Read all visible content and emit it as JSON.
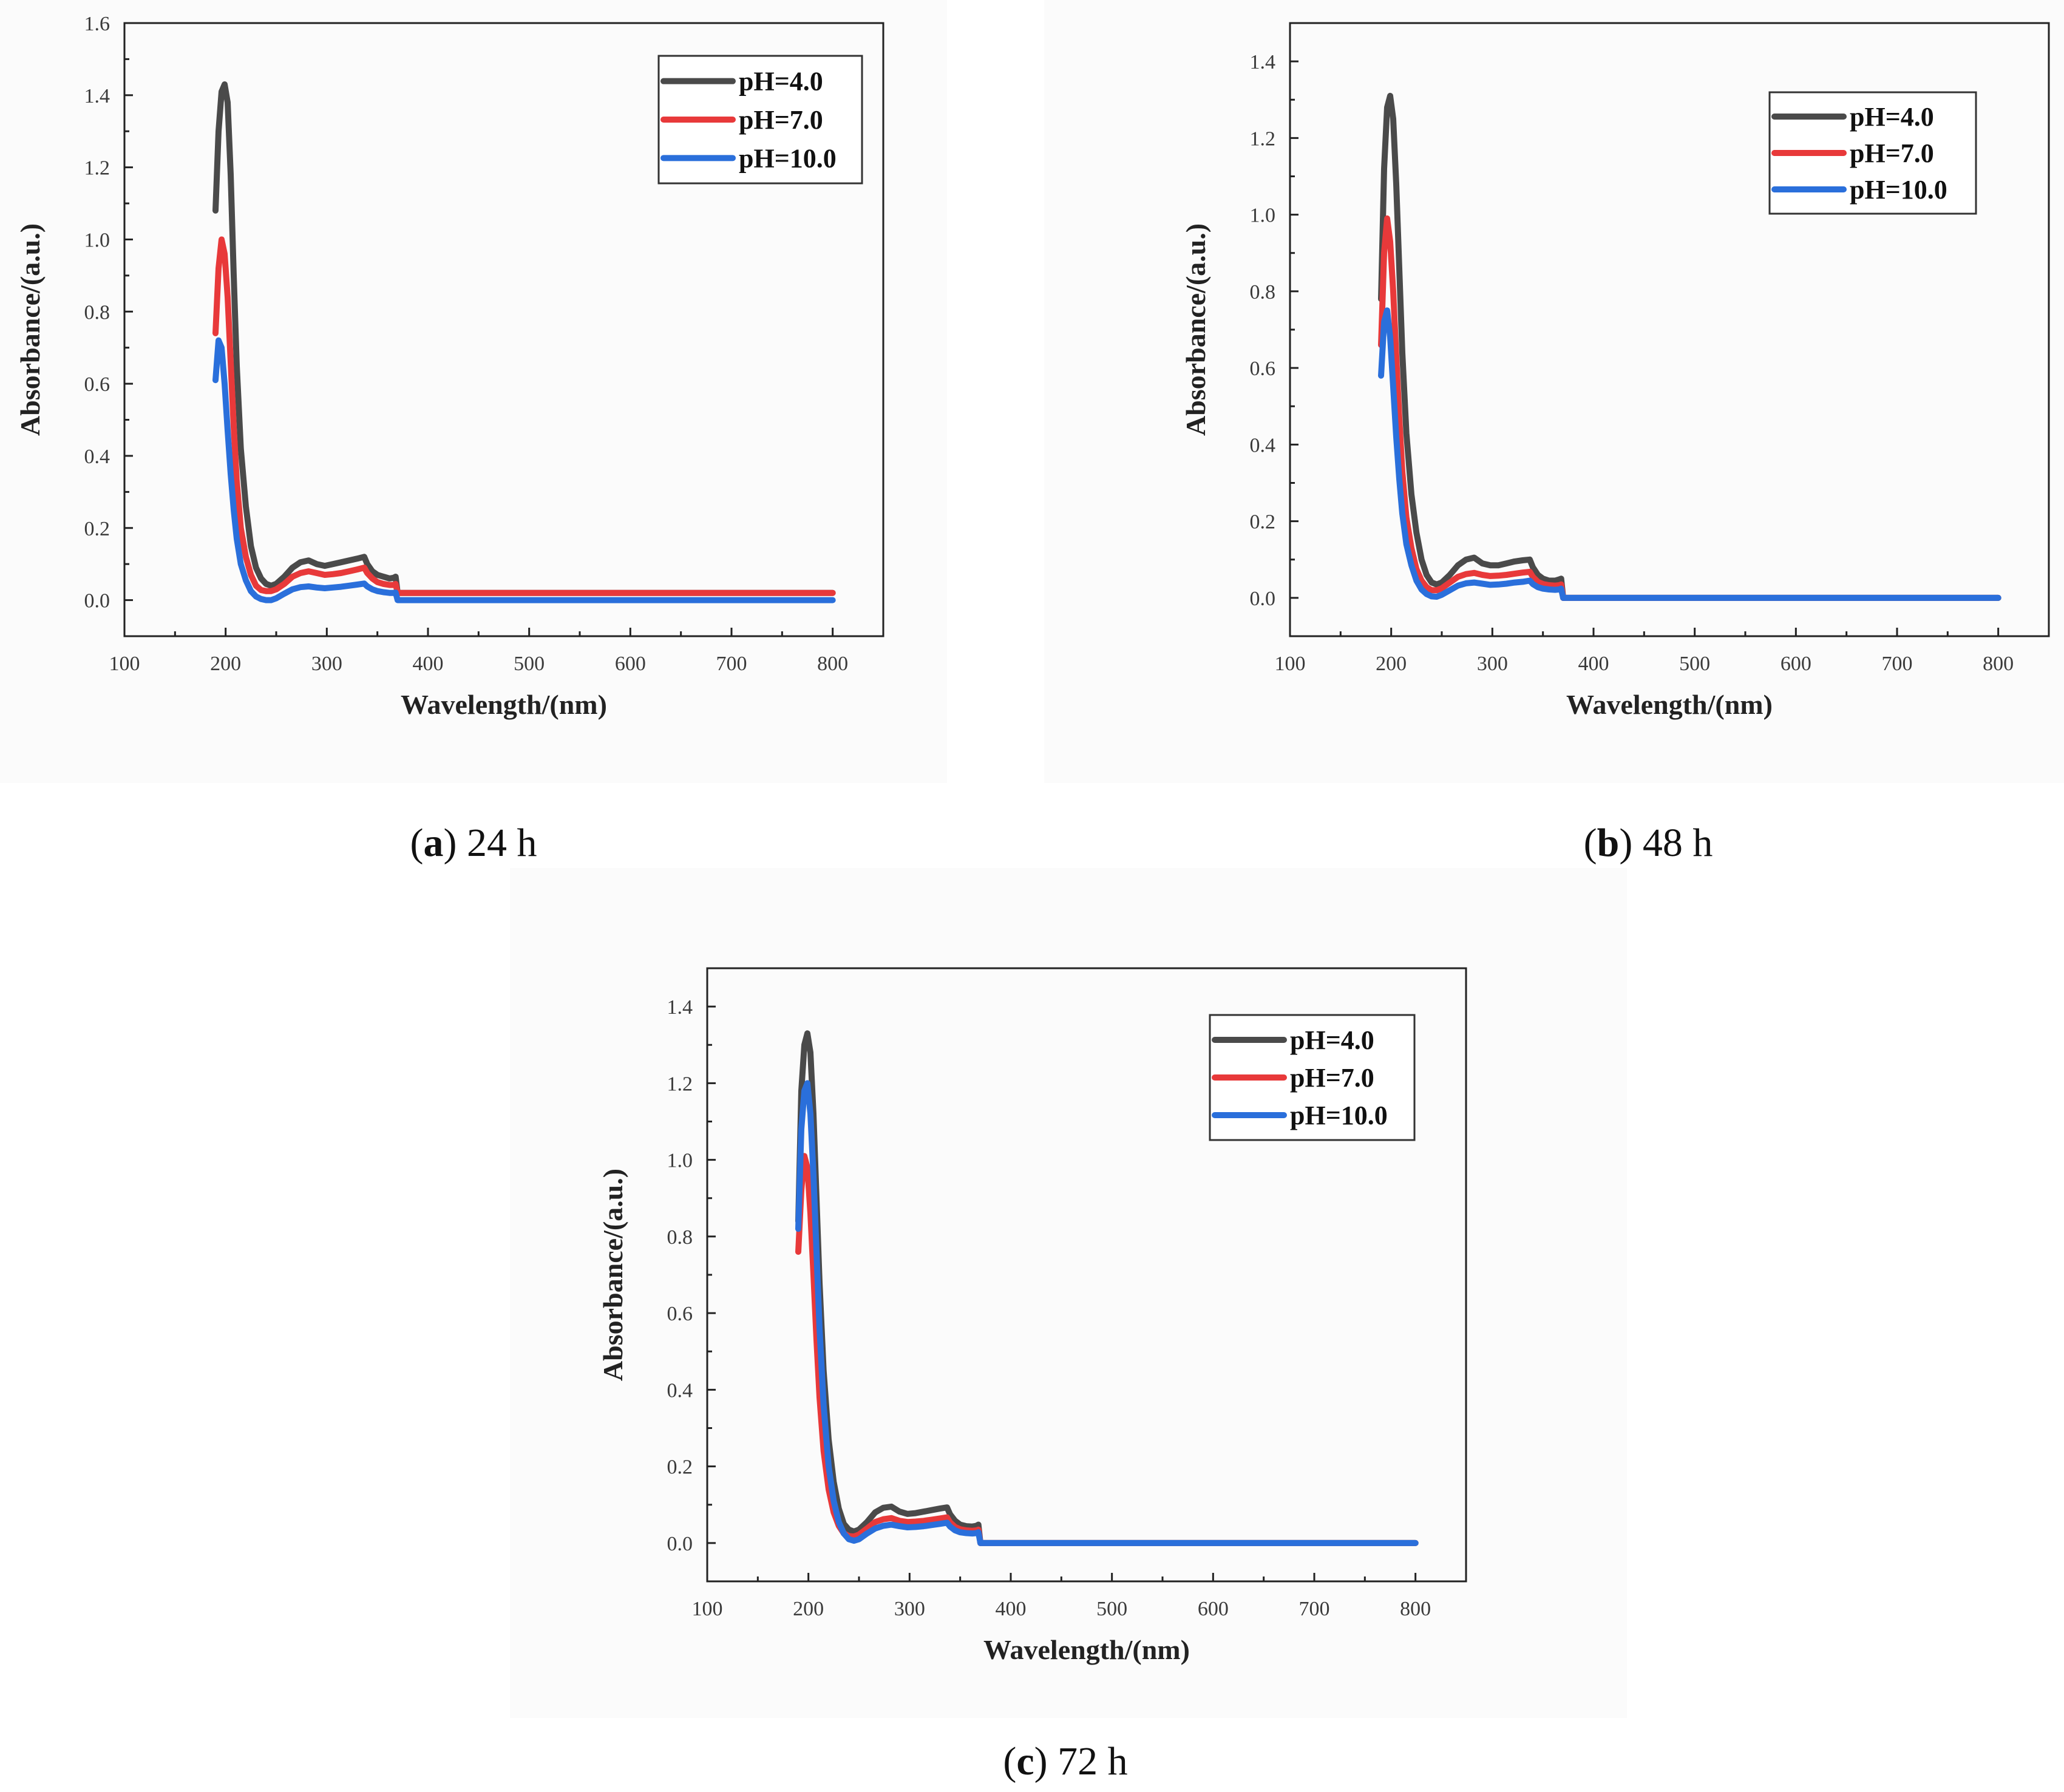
{
  "chart_data": [
    {
      "type": "line",
      "caption": {
        "open": "(",
        "letter": "a",
        "close": ")",
        "text": " 24 h"
      },
      "xlabel": "Wavelength/(nm)",
      "ylabel": "Absorbance/(a.u.)",
      "xlim": [
        100,
        850
      ],
      "ylim": [
        -0.1,
        1.6
      ],
      "xticks": [
        "100",
        "200",
        "300",
        "400",
        "500",
        "600",
        "700",
        "800"
      ],
      "yticks": [
        "0.0",
        "0.2",
        "0.4",
        "0.6",
        "0.8",
        "1.0",
        "1.2",
        "1.4",
        "1.6"
      ],
      "legend_position": "top-right",
      "series": [
        {
          "name": "pH=4.0",
          "color": "#4a4a4a",
          "x": [
            190,
            193,
            196,
            199,
            202,
            205,
            208,
            211,
            215,
            220,
            225,
            230,
            235,
            240,
            245,
            250,
            258,
            266,
            274,
            282,
            290,
            298,
            306,
            314,
            322,
            330,
            337,
            340,
            345,
            350,
            356,
            362,
            366,
            368,
            370,
            400,
            500,
            600,
            700,
            800
          ],
          "y": [
            1.08,
            1.3,
            1.41,
            1.43,
            1.38,
            1.18,
            0.9,
            0.65,
            0.42,
            0.26,
            0.15,
            0.09,
            0.06,
            0.045,
            0.04,
            0.045,
            0.065,
            0.09,
            0.105,
            0.11,
            0.1,
            0.095,
            0.1,
            0.105,
            0.11,
            0.115,
            0.12,
            0.1,
            0.08,
            0.07,
            0.065,
            0.06,
            0.062,
            0.065,
            0.02,
            0.02,
            0.02,
            0.02,
            0.02,
            0.02
          ]
        },
        {
          "name": "pH=7.0",
          "color": "#e8393a",
          "x": [
            190,
            193,
            196,
            199,
            202,
            205,
            208,
            211,
            215,
            220,
            225,
            230,
            235,
            240,
            245,
            250,
            258,
            266,
            274,
            282,
            290,
            298,
            306,
            314,
            322,
            330,
            337,
            340,
            345,
            350,
            356,
            362,
            366,
            368,
            370,
            400,
            500,
            600,
            700,
            800
          ],
          "y": [
            0.74,
            0.92,
            1.0,
            0.96,
            0.84,
            0.66,
            0.48,
            0.33,
            0.2,
            0.12,
            0.07,
            0.04,
            0.028,
            0.025,
            0.025,
            0.03,
            0.045,
            0.065,
            0.075,
            0.08,
            0.075,
            0.07,
            0.072,
            0.075,
            0.08,
            0.085,
            0.09,
            0.075,
            0.06,
            0.05,
            0.045,
            0.042,
            0.042,
            0.045,
            0.02,
            0.02,
            0.02,
            0.02,
            0.02,
            0.02
          ]
        },
        {
          "name": "pH=10.0",
          "color": "#2a6fdb",
          "x": [
            190,
            193,
            196,
            199,
            202,
            205,
            208,
            211,
            215,
            220,
            225,
            230,
            235,
            240,
            245,
            250,
            258,
            266,
            274,
            282,
            290,
            298,
            306,
            314,
            322,
            330,
            337,
            340,
            345,
            350,
            356,
            362,
            366,
            368,
            370,
            400,
            500,
            600,
            700,
            800
          ],
          "y": [
            0.61,
            0.72,
            0.7,
            0.6,
            0.47,
            0.35,
            0.25,
            0.17,
            0.1,
            0.055,
            0.025,
            0.01,
            0.003,
            0.0,
            0.0,
            0.005,
            0.018,
            0.03,
            0.036,
            0.038,
            0.035,
            0.033,
            0.035,
            0.037,
            0.04,
            0.043,
            0.046,
            0.038,
            0.03,
            0.025,
            0.022,
            0.02,
            0.02,
            0.021,
            0.0,
            0.0,
            0.0,
            0.0,
            0.0,
            0.0
          ]
        }
      ]
    },
    {
      "type": "line",
      "caption": {
        "open": "(",
        "letter": "b",
        "close": ")",
        "text": " 48 h"
      },
      "xlabel": "Wavelength/(nm)",
      "ylabel": "Absorbance/(a.u.)",
      "xlim": [
        100,
        850
      ],
      "ylim": [
        -0.1,
        1.5
      ],
      "xticks": [
        "100",
        "200",
        "300",
        "400",
        "500",
        "600",
        "700",
        "800"
      ],
      "yticks": [
        "0.0",
        "0.2",
        "0.4",
        "0.6",
        "0.8",
        "1.0",
        "1.2",
        "1.4"
      ],
      "legend_position": "top-right",
      "series": [
        {
          "name": "pH=4.0",
          "color": "#4a4a4a",
          "x": [
            190,
            193,
            196,
            199,
            202,
            205,
            208,
            211,
            215,
            220,
            225,
            230,
            235,
            240,
            245,
            250,
            258,
            266,
            274,
            282,
            290,
            298,
            306,
            314,
            322,
            330,
            337,
            340,
            345,
            350,
            356,
            362,
            366,
            368,
            370,
            400,
            500,
            600,
            700,
            800
          ],
          "y": [
            0.78,
            1.12,
            1.28,
            1.31,
            1.25,
            1.08,
            0.86,
            0.64,
            0.43,
            0.27,
            0.17,
            0.1,
            0.06,
            0.04,
            0.035,
            0.04,
            0.06,
            0.085,
            0.1,
            0.105,
            0.09,
            0.085,
            0.085,
            0.09,
            0.095,
            0.098,
            0.1,
            0.08,
            0.06,
            0.05,
            0.045,
            0.045,
            0.048,
            0.05,
            0.0,
            0.0,
            0.0,
            0.0,
            0.0,
            0.0
          ]
        },
        {
          "name": "pH=7.0",
          "color": "#e8393a",
          "x": [
            190,
            193,
            196,
            199,
            202,
            205,
            208,
            211,
            215,
            220,
            225,
            230,
            235,
            240,
            245,
            250,
            258,
            266,
            274,
            282,
            290,
            298,
            306,
            314,
            322,
            330,
            337,
            340,
            345,
            350,
            356,
            362,
            366,
            368,
            370,
            400,
            500,
            600,
            700,
            800
          ],
          "y": [
            0.66,
            0.9,
            0.99,
            0.93,
            0.8,
            0.63,
            0.47,
            0.33,
            0.21,
            0.13,
            0.075,
            0.045,
            0.028,
            0.02,
            0.02,
            0.025,
            0.04,
            0.055,
            0.062,
            0.065,
            0.06,
            0.057,
            0.058,
            0.06,
            0.063,
            0.066,
            0.068,
            0.055,
            0.042,
            0.036,
            0.033,
            0.032,
            0.033,
            0.035,
            0.0,
            0.0,
            0.0,
            0.0,
            0.0,
            0.0
          ]
        },
        {
          "name": "pH=10.0",
          "color": "#2a6fdb",
          "x": [
            190,
            193,
            196,
            199,
            202,
            205,
            208,
            211,
            215,
            220,
            225,
            230,
            235,
            240,
            245,
            250,
            258,
            266,
            274,
            282,
            290,
            298,
            306,
            314,
            322,
            330,
            337,
            340,
            345,
            350,
            356,
            362,
            366,
            368,
            370,
            400,
            500,
            600,
            700,
            800
          ],
          "y": [
            0.58,
            0.72,
            0.75,
            0.68,
            0.55,
            0.42,
            0.31,
            0.22,
            0.14,
            0.085,
            0.045,
            0.022,
            0.01,
            0.004,
            0.003,
            0.008,
            0.02,
            0.032,
            0.038,
            0.04,
            0.037,
            0.034,
            0.035,
            0.037,
            0.04,
            0.042,
            0.045,
            0.036,
            0.028,
            0.024,
            0.022,
            0.021,
            0.022,
            0.024,
            0.0,
            0.0,
            0.0,
            0.0,
            0.0,
            0.0
          ]
        }
      ]
    },
    {
      "type": "line",
      "caption": {
        "open": "(",
        "letter": "c",
        "close": ")",
        "text": " 72 h"
      },
      "xlabel": "Wavelength/(nm)",
      "ylabel": "Absorbance/(a.u.)",
      "xlim": [
        100,
        850
      ],
      "ylim": [
        -0.1,
        1.5
      ],
      "xticks": [
        "100",
        "200",
        "300",
        "400",
        "500",
        "600",
        "700",
        "800"
      ],
      "yticks": [
        "0.0",
        "0.2",
        "0.4",
        "0.6",
        "0.8",
        "1.0",
        "1.2",
        "1.4"
      ],
      "legend_position": "top-right",
      "series": [
        {
          "name": "pH=4.0",
          "color": "#4a4a4a",
          "x": [
            190,
            193,
            196,
            199,
            202,
            205,
            208,
            211,
            215,
            220,
            225,
            230,
            235,
            240,
            245,
            250,
            258,
            266,
            274,
            282,
            290,
            298,
            306,
            314,
            322,
            330,
            337,
            340,
            345,
            350,
            356,
            362,
            366,
            368,
            370,
            400,
            500,
            600,
            700,
            800
          ],
          "y": [
            0.84,
            1.18,
            1.3,
            1.33,
            1.28,
            1.12,
            0.9,
            0.68,
            0.45,
            0.27,
            0.16,
            0.09,
            0.05,
            0.035,
            0.03,
            0.035,
            0.055,
            0.08,
            0.092,
            0.095,
            0.082,
            0.076,
            0.078,
            0.082,
            0.086,
            0.09,
            0.093,
            0.075,
            0.058,
            0.048,
            0.044,
            0.043,
            0.045,
            0.048,
            0.0,
            0.0,
            0.0,
            0.0,
            0.0,
            0.0
          ]
        },
        {
          "name": "pH=7.0",
          "color": "#e8393a",
          "x": [
            190,
            193,
            196,
            199,
            202,
            205,
            208,
            211,
            215,
            220,
            225,
            230,
            235,
            240,
            245,
            250,
            258,
            266,
            274,
            282,
            290,
            298,
            306,
            314,
            322,
            330,
            337,
            340,
            345,
            350,
            356,
            362,
            366,
            368,
            370,
            400,
            500,
            600,
            700,
            800
          ],
          "y": [
            0.76,
            0.92,
            1.01,
            0.98,
            0.86,
            0.7,
            0.53,
            0.38,
            0.24,
            0.14,
            0.08,
            0.045,
            0.025,
            0.018,
            0.017,
            0.022,
            0.038,
            0.055,
            0.062,
            0.065,
            0.058,
            0.055,
            0.056,
            0.058,
            0.061,
            0.064,
            0.067,
            0.054,
            0.042,
            0.036,
            0.033,
            0.032,
            0.033,
            0.035,
            0.0,
            0.0,
            0.0,
            0.0,
            0.0,
            0.0
          ]
        },
        {
          "name": "pH=10.0",
          "color": "#2a6fdb",
          "x": [
            190,
            193,
            196,
            199,
            202,
            205,
            208,
            211,
            215,
            220,
            225,
            230,
            235,
            240,
            245,
            250,
            258,
            266,
            274,
            282,
            290,
            298,
            306,
            314,
            322,
            330,
            337,
            340,
            345,
            350,
            356,
            362,
            366,
            368,
            370,
            400,
            500,
            600,
            700,
            800
          ],
          "y": [
            0.82,
            1.08,
            1.18,
            1.2,
            1.12,
            0.96,
            0.76,
            0.56,
            0.36,
            0.2,
            0.11,
            0.055,
            0.025,
            0.01,
            0.006,
            0.01,
            0.025,
            0.038,
            0.045,
            0.048,
            0.044,
            0.041,
            0.042,
            0.044,
            0.047,
            0.05,
            0.053,
            0.043,
            0.033,
            0.028,
            0.026,
            0.025,
            0.026,
            0.028,
            0.0,
            0.0,
            0.0,
            0.0,
            0.0,
            0.0
          ]
        }
      ]
    }
  ]
}
